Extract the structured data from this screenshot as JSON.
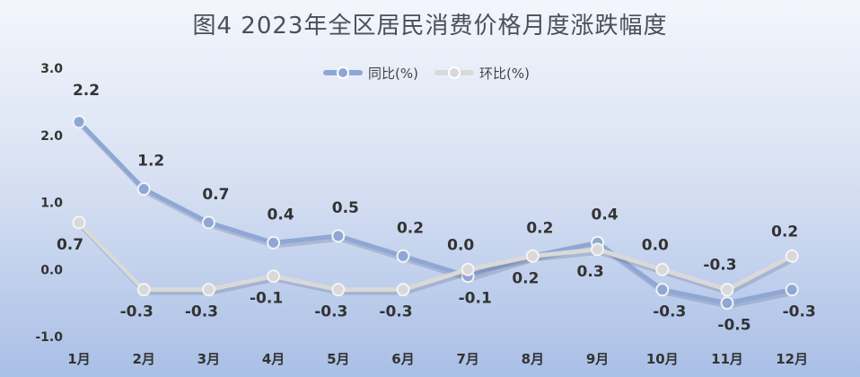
{
  "title": "图4  2023年全区居民消费价格月度涨跌幅度",
  "chart_data": {
    "type": "line",
    "categories": [
      "1月",
      "2月",
      "3月",
      "4月",
      "5月",
      "6月",
      "7月",
      "8月",
      "9月",
      "10月",
      "11月",
      "12月"
    ],
    "series": [
      {
        "name": "同比(%)",
        "color": "#8fa7d4",
        "values": [
          2.2,
          1.2,
          0.7,
          0.4,
          0.5,
          0.2,
          -0.1,
          0.2,
          0.4,
          -0.3,
          -0.5,
          -0.3
        ]
      },
      {
        "name": "环比(%)",
        "color": "#d9d9d9",
        "values": [
          0.7,
          -0.3,
          -0.3,
          -0.1,
          -0.3,
          -0.3,
          0.0,
          0.2,
          0.3,
          0.0,
          -0.3,
          0.2
        ]
      }
    ],
    "ylim": [
      -1.0,
      3.0
    ],
    "yticks": [
      "3.0",
      "2.0",
      "1.0",
      "0.0",
      "-1.0"
    ],
    "ytick_values": [
      3,
      2,
      1,
      0,
      -1
    ],
    "data_labels": {
      "同比(%)": [
        "2.2",
        "1.2",
        "0.7",
        "0.4",
        "0.5",
        "0.2",
        "-0.1",
        "0.2",
        "0.4",
        "-0.3",
        "-0.5",
        "-0.3"
      ],
      "环比(%)": [
        "0.7",
        "-0.3",
        "-0.3",
        "-0.1",
        "-0.3",
        "-0.3",
        "0.0",
        "0.2",
        "0.3",
        "0.0",
        "-0.3",
        "0.2"
      ]
    },
    "legend_position": "top-center",
    "grid": false
  }
}
